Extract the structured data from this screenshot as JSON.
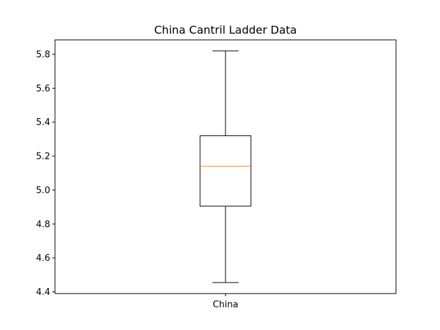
{
  "chart_data": {
    "type": "box",
    "title": "China Cantril Ladder Data",
    "xlabel": "",
    "ylabel": "",
    "categories": [
      "China"
    ],
    "series": [
      {
        "category": "China",
        "whisker_low": 4.455,
        "q1": 4.905,
        "median": 5.14,
        "q3": 5.32,
        "whisker_high": 5.82
      }
    ],
    "ylim": [
      4.39,
      5.885
    ],
    "yticks": [
      "4.4",
      "4.6",
      "4.8",
      "5.0",
      "5.2",
      "5.4",
      "5.6",
      "5.8"
    ],
    "colors": {
      "box": "#000000",
      "median": "#ff7f0e",
      "axes": "#000000"
    },
    "grid": false
  }
}
